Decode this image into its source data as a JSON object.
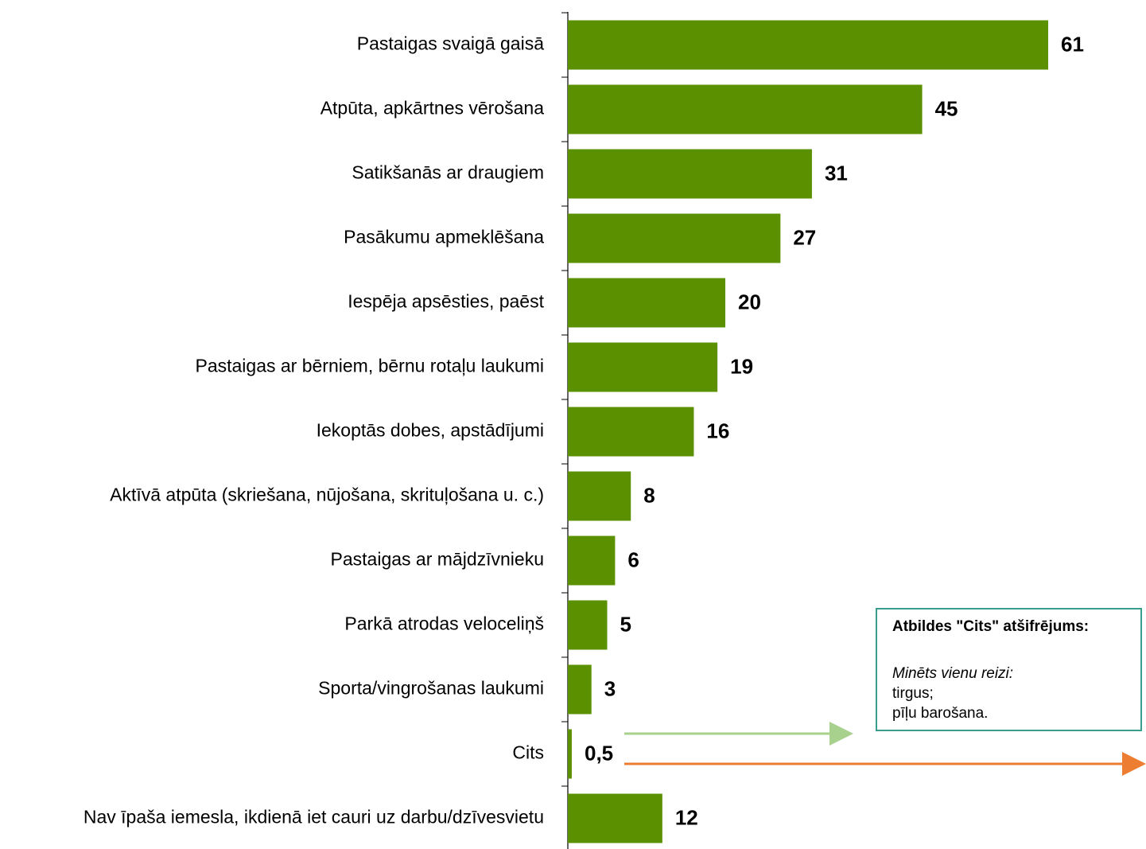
{
  "chart_data": {
    "type": "bar",
    "orientation": "horizontal",
    "categories": [
      "Pastaigas svaigā gaisā",
      "Atpūta, apkārtnes vērošana",
      "Satikšanās ar draugiem",
      "Pasākumu apmeklēšana",
      "Iespēja apsēsties, paēst",
      "Pastaigas ar bērniem, bērnu rotaļu laukumi",
      "Iekoptās dobes, apstādījumi",
      "Aktīvā atpūta (skriešana, nūjošana, skrituļošana u. c.)",
      "Pastaigas ar mājdzīvnieku",
      "Parkā atrodas veloceliņš",
      "Sporta/vingrošanas laukumi",
      "Cits",
      "Nav īpaša iemesla, ikdienā iet cauri uz darbu/dzīvesvietu"
    ],
    "values": [
      61,
      45,
      31,
      27,
      20,
      19,
      16,
      8,
      6,
      5,
      3,
      0.5,
      12
    ],
    "value_labels": [
      "61",
      "45",
      "31",
      "27",
      "20",
      "19",
      "16",
      "8",
      "6",
      "5",
      "3",
      "0,5",
      "12"
    ],
    "color": "#5b9100",
    "annotation": {
      "title": "Atbildes \"Cits\" atšifrējums:",
      "subtitle": "Minēts vienu reizi:",
      "lines": [
        "tirgus;",
        "pīļu barošana."
      ]
    }
  }
}
